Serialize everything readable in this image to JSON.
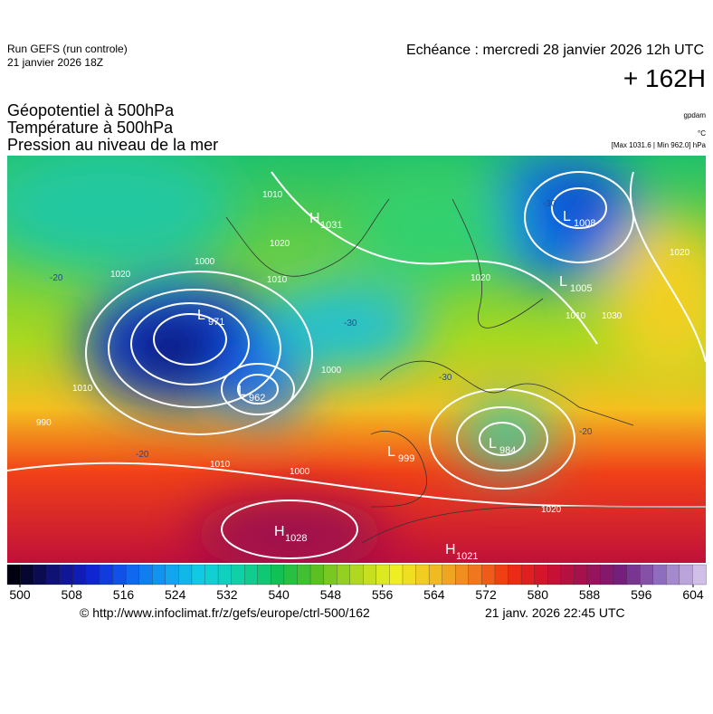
{
  "header": {
    "run": "Run GEFS (run controle)",
    "run_date": "21 janvier 2026 18Z",
    "valid": "Echéance : mercredi 28 janvier 2026 12h UTC",
    "lead": "+ 162H",
    "titles": [
      "Géopotentiel à 500hPa",
      "Température à 500hPa",
      "Pression au niveau de la mer"
    ],
    "units": [
      "gpdam",
      "°C",
      "[Max 1031.6 | Min 962.0] hPa"
    ]
  },
  "map": {
    "centers": [
      {
        "letter": "H",
        "value": "1031"
      },
      {
        "letter": "L",
        "value": "971"
      },
      {
        "letter": "L",
        "value": "962"
      },
      {
        "letter": "L",
        "value": "1008"
      },
      {
        "letter": "L",
        "value": "1005"
      },
      {
        "letter": "L",
        "value": "984"
      },
      {
        "letter": "L",
        "value": "999"
      },
      {
        "letter": "H",
        "value": "1028"
      },
      {
        "letter": "H",
        "value": "1021"
      }
    ],
    "isobar_labels": [
      "1010",
      "1020",
      "1000",
      "990",
      "1010",
      "1020",
      "1000",
      "1020",
      "1010",
      "1020",
      "1010",
      "1000",
      "1010",
      "1020",
      "1030"
    ],
    "isotherm_labels": [
      "-20",
      "-30",
      "-30",
      "-20",
      "-30",
      "-20"
    ]
  },
  "colorbar": {
    "ticks": [
      500,
      508,
      516,
      524,
      532,
      540,
      548,
      556,
      564,
      572,
      580,
      588,
      596,
      604
    ]
  },
  "footer": {
    "url": "© http://www.infoclimat.fr/z/gefs/europe/ctrl-500/162",
    "issued": "21 janv. 2026 22:45 UTC"
  }
}
